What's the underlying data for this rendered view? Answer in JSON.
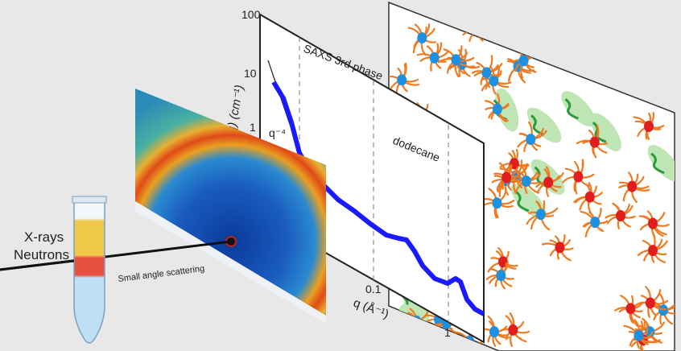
{
  "labels": {
    "xrays": "X-rays",
    "neutrons": "Neutrons",
    "scattering": "Small angle scattering"
  },
  "plot": {
    "y_axis_label": "I(q) (cm⁻¹)",
    "x_axis_label": "q (Å⁻¹)",
    "y_ticks": [
      "100",
      "10",
      "1"
    ],
    "x_ticks": [
      "0.1",
      "1"
    ],
    "slope_label": "q⁻⁴",
    "region_saxs": "SAXS 3rd phase",
    "region_dodecane": "dodecane"
  },
  "colors": {
    "background": "#e8e8e8",
    "curve": "#1a1aff",
    "micelle_blue": "#1e90e0",
    "micelle_red": "#e01e1e",
    "surfactant": "#f07a20",
    "polymer": "#2a9a3a",
    "polymer_halo": "#bfe5b5"
  }
}
